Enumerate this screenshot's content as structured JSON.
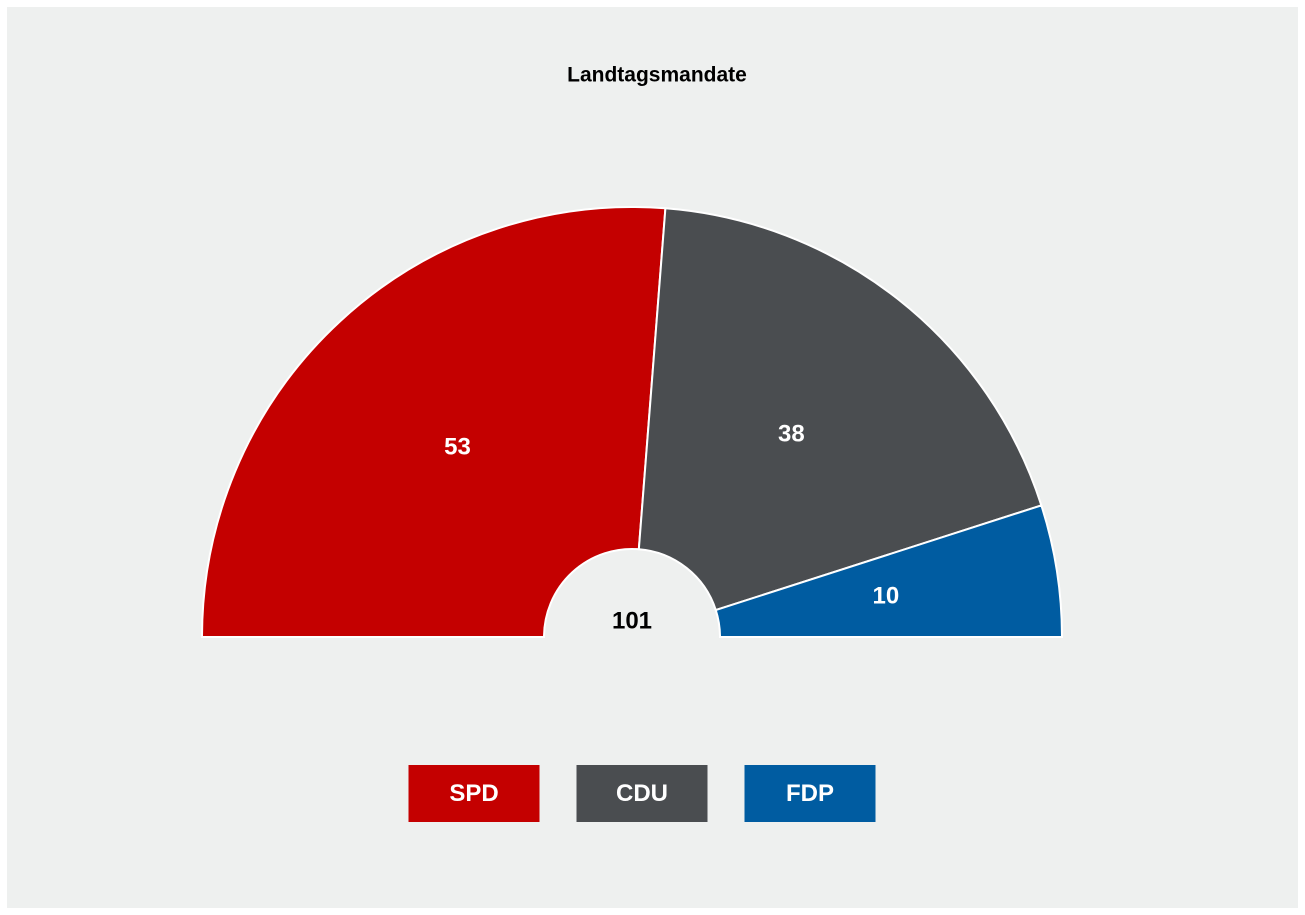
{
  "chart_data": {
    "type": "semidonut",
    "title": "Landtagsmandate",
    "total": 101,
    "categories": [
      "SPD",
      "CDU",
      "FDP"
    ],
    "values": [
      53,
      38,
      10
    ],
    "colors": [
      "#c40000",
      "#4a4d50",
      "#005ca1"
    ],
    "legend": "bottom"
  }
}
